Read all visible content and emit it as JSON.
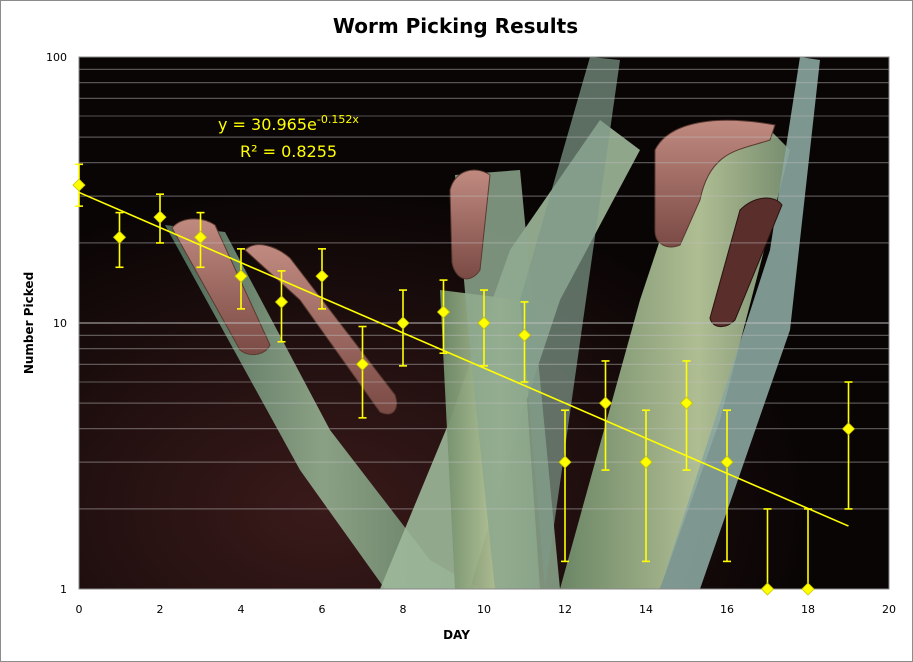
{
  "chart_data": {
    "type": "scatter",
    "title": "Worm Picking Results",
    "xlabel": "DAY",
    "ylabel": "Number Picked",
    "xlim": [
      0,
      20
    ],
    "ylim": [
      1,
      100
    ],
    "yscale": "log",
    "xticks": [
      "0",
      "2",
      "4",
      "6",
      "8",
      "10",
      "12",
      "14",
      "16",
      "18",
      "20"
    ],
    "yticks": [
      "1",
      "10",
      "100"
    ],
    "grid": true,
    "legend": "none",
    "background": "photo of corn leaves with worms",
    "marker_color": "#ffff00",
    "points": [
      {
        "x": 0,
        "y": 33,
        "err_low": 27.5,
        "err_high": 39.5
      },
      {
        "x": 1,
        "y": 21,
        "err_low": 16.2,
        "err_high": 26
      },
      {
        "x": 2,
        "y": 25,
        "err_low": 20,
        "err_high": 30.5
      },
      {
        "x": 3,
        "y": 21,
        "err_low": 16.2,
        "err_high": 26
      },
      {
        "x": 4,
        "y": 15,
        "err_low": 11.3,
        "err_high": 19
      },
      {
        "x": 5,
        "y": 12,
        "err_low": 8.5,
        "err_high": 15.7
      },
      {
        "x": 6,
        "y": 15,
        "err_low": 11.3,
        "err_high": 19
      },
      {
        "x": 7,
        "y": 7,
        "err_low": 4.4,
        "err_high": 9.7
      },
      {
        "x": 8,
        "y": 10,
        "err_low": 6.9,
        "err_high": 13.3
      },
      {
        "x": 9,
        "y": 11,
        "err_low": 7.7,
        "err_high": 14.5
      },
      {
        "x": 10,
        "y": 10,
        "err_low": 6.9,
        "err_high": 13.3
      },
      {
        "x": 11,
        "y": 9,
        "err_low": 6,
        "err_high": 12
      },
      {
        "x": 12,
        "y": 3,
        "err_low": 1.27,
        "err_high": 4.7
      },
      {
        "x": 13,
        "y": 5,
        "err_low": 2.8,
        "err_high": 7.2
      },
      {
        "x": 14,
        "y": 3,
        "err_low": 1.27,
        "err_high": 4.7
      },
      {
        "x": 15,
        "y": 5,
        "err_low": 2.8,
        "err_high": 7.2
      },
      {
        "x": 16,
        "y": 3,
        "err_low": 1.27,
        "err_high": 4.7
      },
      {
        "x": 17,
        "y": 1,
        "err_low": 1,
        "err_high": 2
      },
      {
        "x": 18,
        "y": 1,
        "err_low": 1,
        "err_high": 2
      },
      {
        "x": 19,
        "y": 4,
        "err_low": 2,
        "err_high": 6
      }
    ],
    "trendline": {
      "type": "exponential",
      "a": 30.965,
      "b": -0.152,
      "x_range": [
        0,
        19
      ],
      "equation_prefix": "y = 30.965e",
      "equation_exponent": "-0.152x",
      "r2_label": "R² = 0.8255"
    }
  }
}
